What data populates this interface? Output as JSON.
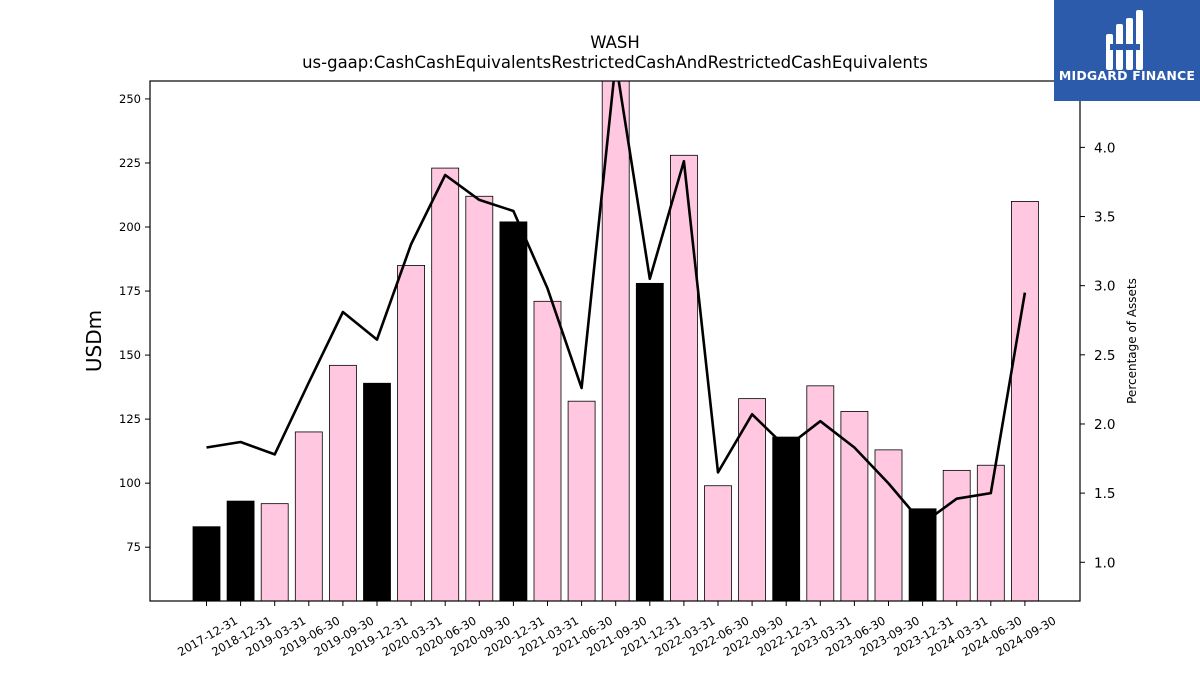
{
  "chart_data": {
    "type": "bar",
    "title": "WASH",
    "subtitle": "us-gaap:CashCashEquivalentsRestrictedCashAndRestrictedCashEquivalents",
    "ylabel": "USDm",
    "ylabel_right": "Percentage of Assets",
    "ylim": [
      54,
      257
    ],
    "ylim_right": [
      0.72,
      4.48
    ],
    "yticks": [
      75,
      100,
      125,
      150,
      175,
      200,
      225,
      250
    ],
    "yticks_right": [
      1.0,
      1.5,
      2.0,
      2.5,
      3.0,
      3.5,
      4.0
    ],
    "grid": false,
    "categories": [
      "2017-12-31",
      "2018-12-31",
      "2019-03-31",
      "2019-06-30",
      "2019-09-30",
      "2019-12-31",
      "2020-03-31",
      "2020-06-30",
      "2020-09-30",
      "2020-12-31",
      "2021-03-31",
      "2021-06-30",
      "2021-09-30",
      "2021-12-31",
      "2022-03-31",
      "2022-06-30",
      "2022-09-30",
      "2022-12-31",
      "2023-03-31",
      "2023-06-30",
      "2023-09-30",
      "2023-12-31",
      "2024-03-31",
      "2024-06-30",
      "2024-09-30"
    ],
    "series": [
      {
        "name": "",
        "type": "bar",
        "axis": "left",
        "values": [
          83,
          93,
          92,
          120,
          146,
          139,
          185,
          223,
          212,
          202,
          171,
          132,
          258,
          178,
          228,
          99,
          133,
          118,
          138,
          128,
          113,
          90,
          105,
          107,
          210
        ],
        "colors": [
          "#000000",
          "#000000",
          "#ffc8e0",
          "#ffc8e0",
          "#ffc8e0",
          "#000000",
          "#ffc8e0",
          "#ffc8e0",
          "#ffc8e0",
          "#000000",
          "#ffc8e0",
          "#ffc8e0",
          "#ffc8e0",
          "#000000",
          "#ffc8e0",
          "#ffc8e0",
          "#ffc8e0",
          "#000000",
          "#ffc8e0",
          "#ffc8e0",
          "#ffc8e0",
          "#000000",
          "#ffc8e0",
          "#ffc8e0",
          "#ffc8e0"
        ]
      },
      {
        "name": "",
        "type": "line",
        "axis": "right",
        "color": "#000000",
        "values": [
          1.83,
          1.87,
          1.78,
          2.3,
          2.81,
          2.61,
          3.3,
          3.8,
          3.62,
          3.54,
          2.98,
          2.26,
          4.62,
          3.05,
          3.9,
          1.65,
          2.07,
          1.83,
          2.02,
          1.83,
          1.57,
          1.28,
          1.46,
          1.5,
          2.95
        ]
      }
    ]
  },
  "logo": {
    "text": "MIDGARD FINANCE",
    "background": "#2d5bab"
  }
}
